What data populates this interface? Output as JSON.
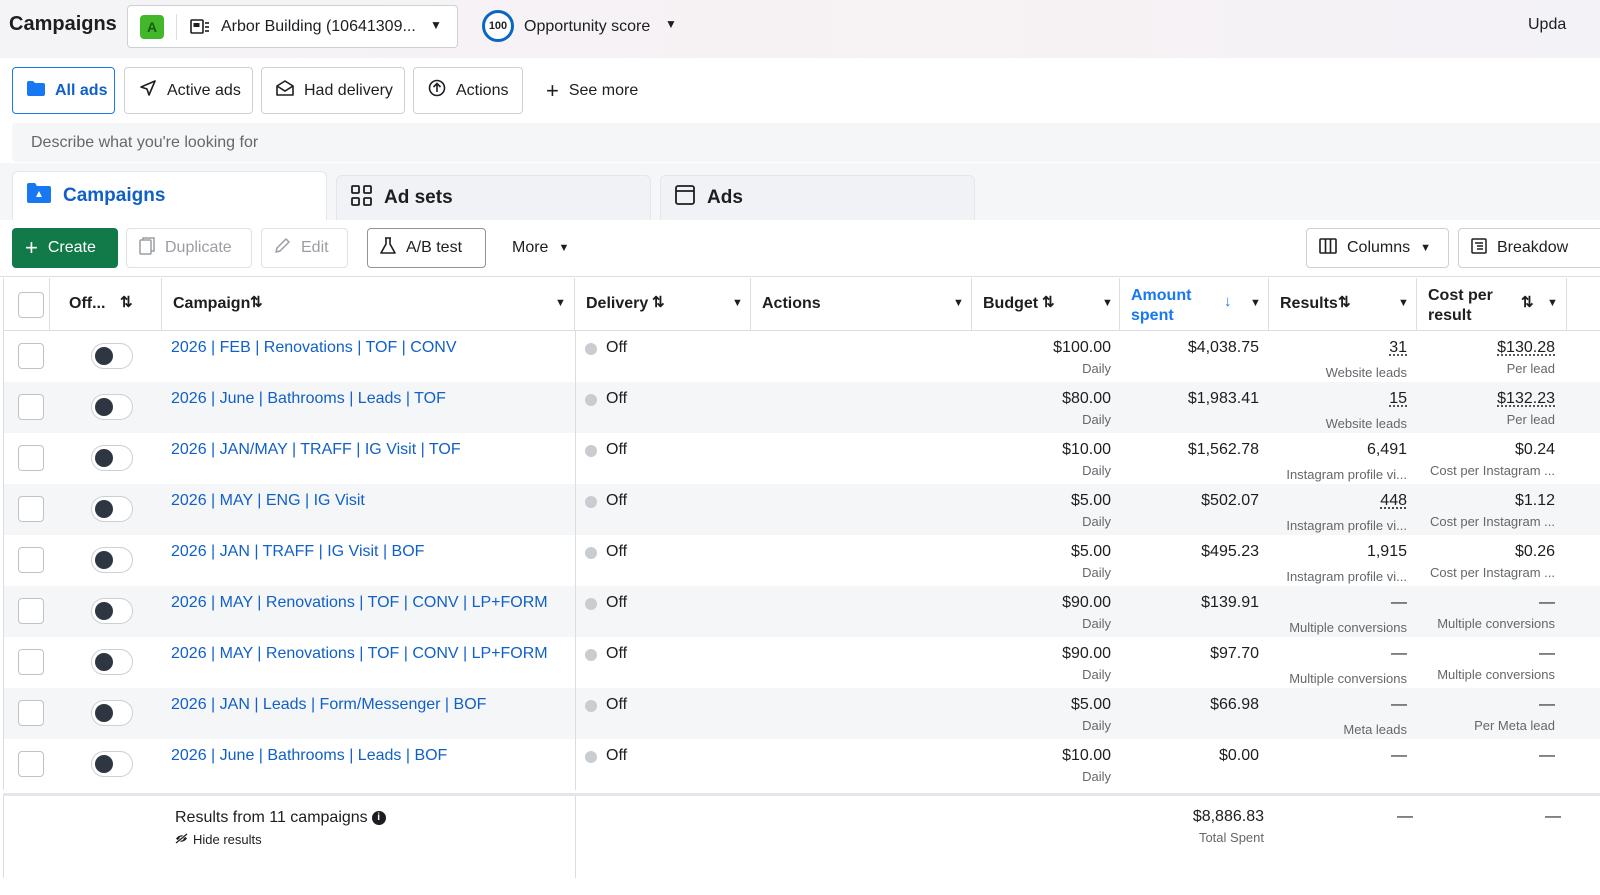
{
  "header": {
    "title": "Campaigns",
    "account_badge": "A",
    "account_name": "Arbor Building (10641309...",
    "opportunity_score_value": "100",
    "opportunity_score_label": "Opportunity score",
    "update_label": "Upda"
  },
  "filters": {
    "all_ads": "All ads",
    "active_ads": "Active ads",
    "had_delivery": "Had delivery",
    "actions": "Actions",
    "see_more": "See more"
  },
  "search": {
    "placeholder": "Describe what you're looking for"
  },
  "level_tabs": {
    "campaigns": "Campaigns",
    "ad_sets": "Ad sets",
    "ads": "Ads"
  },
  "toolbar": {
    "create": "Create",
    "duplicate": "Duplicate",
    "edit": "Edit",
    "ab_test": "A/B test",
    "more": "More",
    "columns": "Columns",
    "breakdown": "Breakdow"
  },
  "table": {
    "headers": {
      "off": "Off...",
      "campaign": "Campaign",
      "delivery": "Delivery",
      "actions": "Actions",
      "budget": "Budget",
      "amount_spent_1": "Amount",
      "amount_spent_2": "spent",
      "results": "Results",
      "cost_per_result_1": "Cost per",
      "cost_per_result_2": "result"
    },
    "rows": [
      {
        "name": "2026 | FEB | Renovations | TOF | CONV",
        "delivery": "Off",
        "budget": "$100.00",
        "budget_type": "Daily",
        "spent": "$4,038.75",
        "results": "31",
        "results_label": "Website leads",
        "cost": "$130.28",
        "cost_label": "Per lead"
      },
      {
        "name": "2026 | June | Bathrooms | Leads | TOF",
        "delivery": "Off",
        "budget": "$80.00",
        "budget_type": "Daily",
        "spent": "$1,983.41",
        "results": "15",
        "results_label": "Website leads",
        "cost": "$132.23",
        "cost_label": "Per lead"
      },
      {
        "name": "2026 | JAN/MAY | TRAFF | IG Visit | TOF",
        "delivery": "Off",
        "budget": "$10.00",
        "budget_type": "Daily",
        "spent": "$1,562.78",
        "results": "6,491",
        "results_label": "Instagram profile vi...",
        "cost": "$0.24",
        "cost_label": "Cost per Instagram ..."
      },
      {
        "name": "2026 | MAY | ENG | IG Visit",
        "delivery": "Off",
        "budget": "$5.00",
        "budget_type": "Daily",
        "spent": "$502.07",
        "results": "448",
        "results_label": "Instagram profile vi...",
        "cost": "$1.12",
        "cost_label": "Cost per Instagram ..."
      },
      {
        "name": "2026 | JAN | TRAFF | IG Visit | BOF",
        "delivery": "Off",
        "budget": "$5.00",
        "budget_type": "Daily",
        "spent": "$495.23",
        "results": "1,915",
        "results_label": "Instagram profile vi...",
        "cost": "$0.26",
        "cost_label": "Cost per Instagram ..."
      },
      {
        "name": "2026 | MAY | Renovations | TOF | CONV | LP+FORM",
        "delivery": "Off",
        "budget": "$90.00",
        "budget_type": "Daily",
        "spent": "$139.91",
        "results": "—",
        "results_label": "Multiple conversions",
        "cost": "—",
        "cost_label": "Multiple conversions"
      },
      {
        "name": "2026 | MAY | Renovations | TOF | CONV | LP+FORM",
        "delivery": "Off",
        "budget": "$90.00",
        "budget_type": "Daily",
        "spent": "$97.70",
        "results": "—",
        "results_label": "Multiple conversions",
        "cost": "—",
        "cost_label": "Multiple conversions"
      },
      {
        "name": "2026 | JAN | Leads | Form/Messenger | BOF",
        "delivery": "Off",
        "budget": "$5.00",
        "budget_type": "Daily",
        "spent": "$66.98",
        "results": "—",
        "results_label": "Meta leads",
        "cost": "—",
        "cost_label": "Per Meta lead"
      },
      {
        "name": "2026 | June | Bathrooms | Leads | BOF",
        "delivery": "Off",
        "budget": "$10.00",
        "budget_type": "Daily",
        "spent": "$0.00",
        "results": "—",
        "results_label": "",
        "cost": "—",
        "cost_label": ""
      }
    ],
    "footer": {
      "title": "Results from 11 campaigns",
      "hide": "Hide results",
      "total_spent": "$8,886.83",
      "total_label": "Total Spent",
      "results": "—",
      "cost": "—"
    }
  },
  "colors": {
    "accent": "#1877f2",
    "link": "#1160c9",
    "create_button": "#117a48"
  }
}
